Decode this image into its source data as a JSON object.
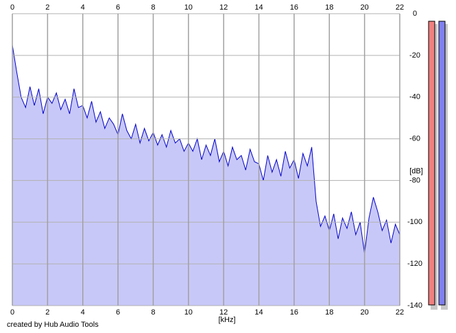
{
  "chart_data": {
    "type": "area",
    "x_label": "[kHz]",
    "y_label": "[dB]",
    "footer": "created by Hub Audio Tools",
    "x": [
      0,
      0.25,
      0.5,
      0.75,
      1,
      1.25,
      1.5,
      1.75,
      2,
      2.25,
      2.5,
      2.75,
      3,
      3.25,
      3.5,
      3.75,
      4,
      4.25,
      4.5,
      4.75,
      5,
      5.25,
      5.5,
      5.75,
      6,
      6.25,
      6.5,
      6.75,
      7,
      7.25,
      7.5,
      7.75,
      8,
      8.25,
      8.5,
      8.75,
      9,
      9.25,
      9.5,
      9.75,
      10,
      10.25,
      10.5,
      10.75,
      11,
      11.25,
      11.5,
      11.75,
      12,
      12.25,
      12.5,
      12.75,
      13,
      13.25,
      13.5,
      13.75,
      14,
      14.25,
      14.5,
      14.75,
      15,
      15.25,
      15.5,
      15.75,
      16,
      16.25,
      16.5,
      16.75,
      17,
      17.25,
      17.5,
      17.75,
      18,
      18.25,
      18.5,
      18.75,
      19,
      19.25,
      19.5,
      19.75,
      20,
      20.25,
      20.5,
      20.75,
      21,
      21.25,
      21.5,
      21.75,
      22
    ],
    "values": [
      -15,
      -28,
      -40,
      -45,
      -35,
      -44,
      -36,
      -48,
      -40,
      -43,
      -38,
      -46,
      -41,
      -48,
      -36,
      -45,
      -44,
      -50,
      -42,
      -52,
      -47,
      -55,
      -50,
      -53,
      -58,
      -48,
      -56,
      -60,
      -53,
      -62,
      -55,
      -61,
      -57,
      -63,
      -58,
      -64,
      -56,
      -62,
      -60,
      -66,
      -62,
      -66,
      -60,
      -70,
      -63,
      -68,
      -60,
      -71,
      -66,
      -73,
      -64,
      -70,
      -68,
      -75,
      -65,
      -71,
      -72,
      -80,
      -68,
      -76,
      -70,
      -78,
      -66,
      -74,
      -70,
      -79,
      -67,
      -73,
      -64,
      -90,
      -102,
      -97,
      -104,
      -96,
      -108,
      -98,
      -103,
      -95,
      -106,
      -100,
      -115,
      -98,
      -88,
      -95,
      -104,
      -99,
      -110,
      -101,
      -106
    ],
    "line_color": "#0000c8",
    "fill_color": "#c8c8f8",
    "xlim": [
      0,
      22
    ],
    "xticks": [
      0,
      2,
      4,
      6,
      8,
      10,
      12,
      14,
      16,
      18,
      20,
      22
    ],
    "ylim": [
      -140,
      0
    ],
    "yticks": [
      0,
      -20,
      -40,
      -60,
      -80,
      -100,
      -120,
      -140
    ],
    "grid": true
  }
}
